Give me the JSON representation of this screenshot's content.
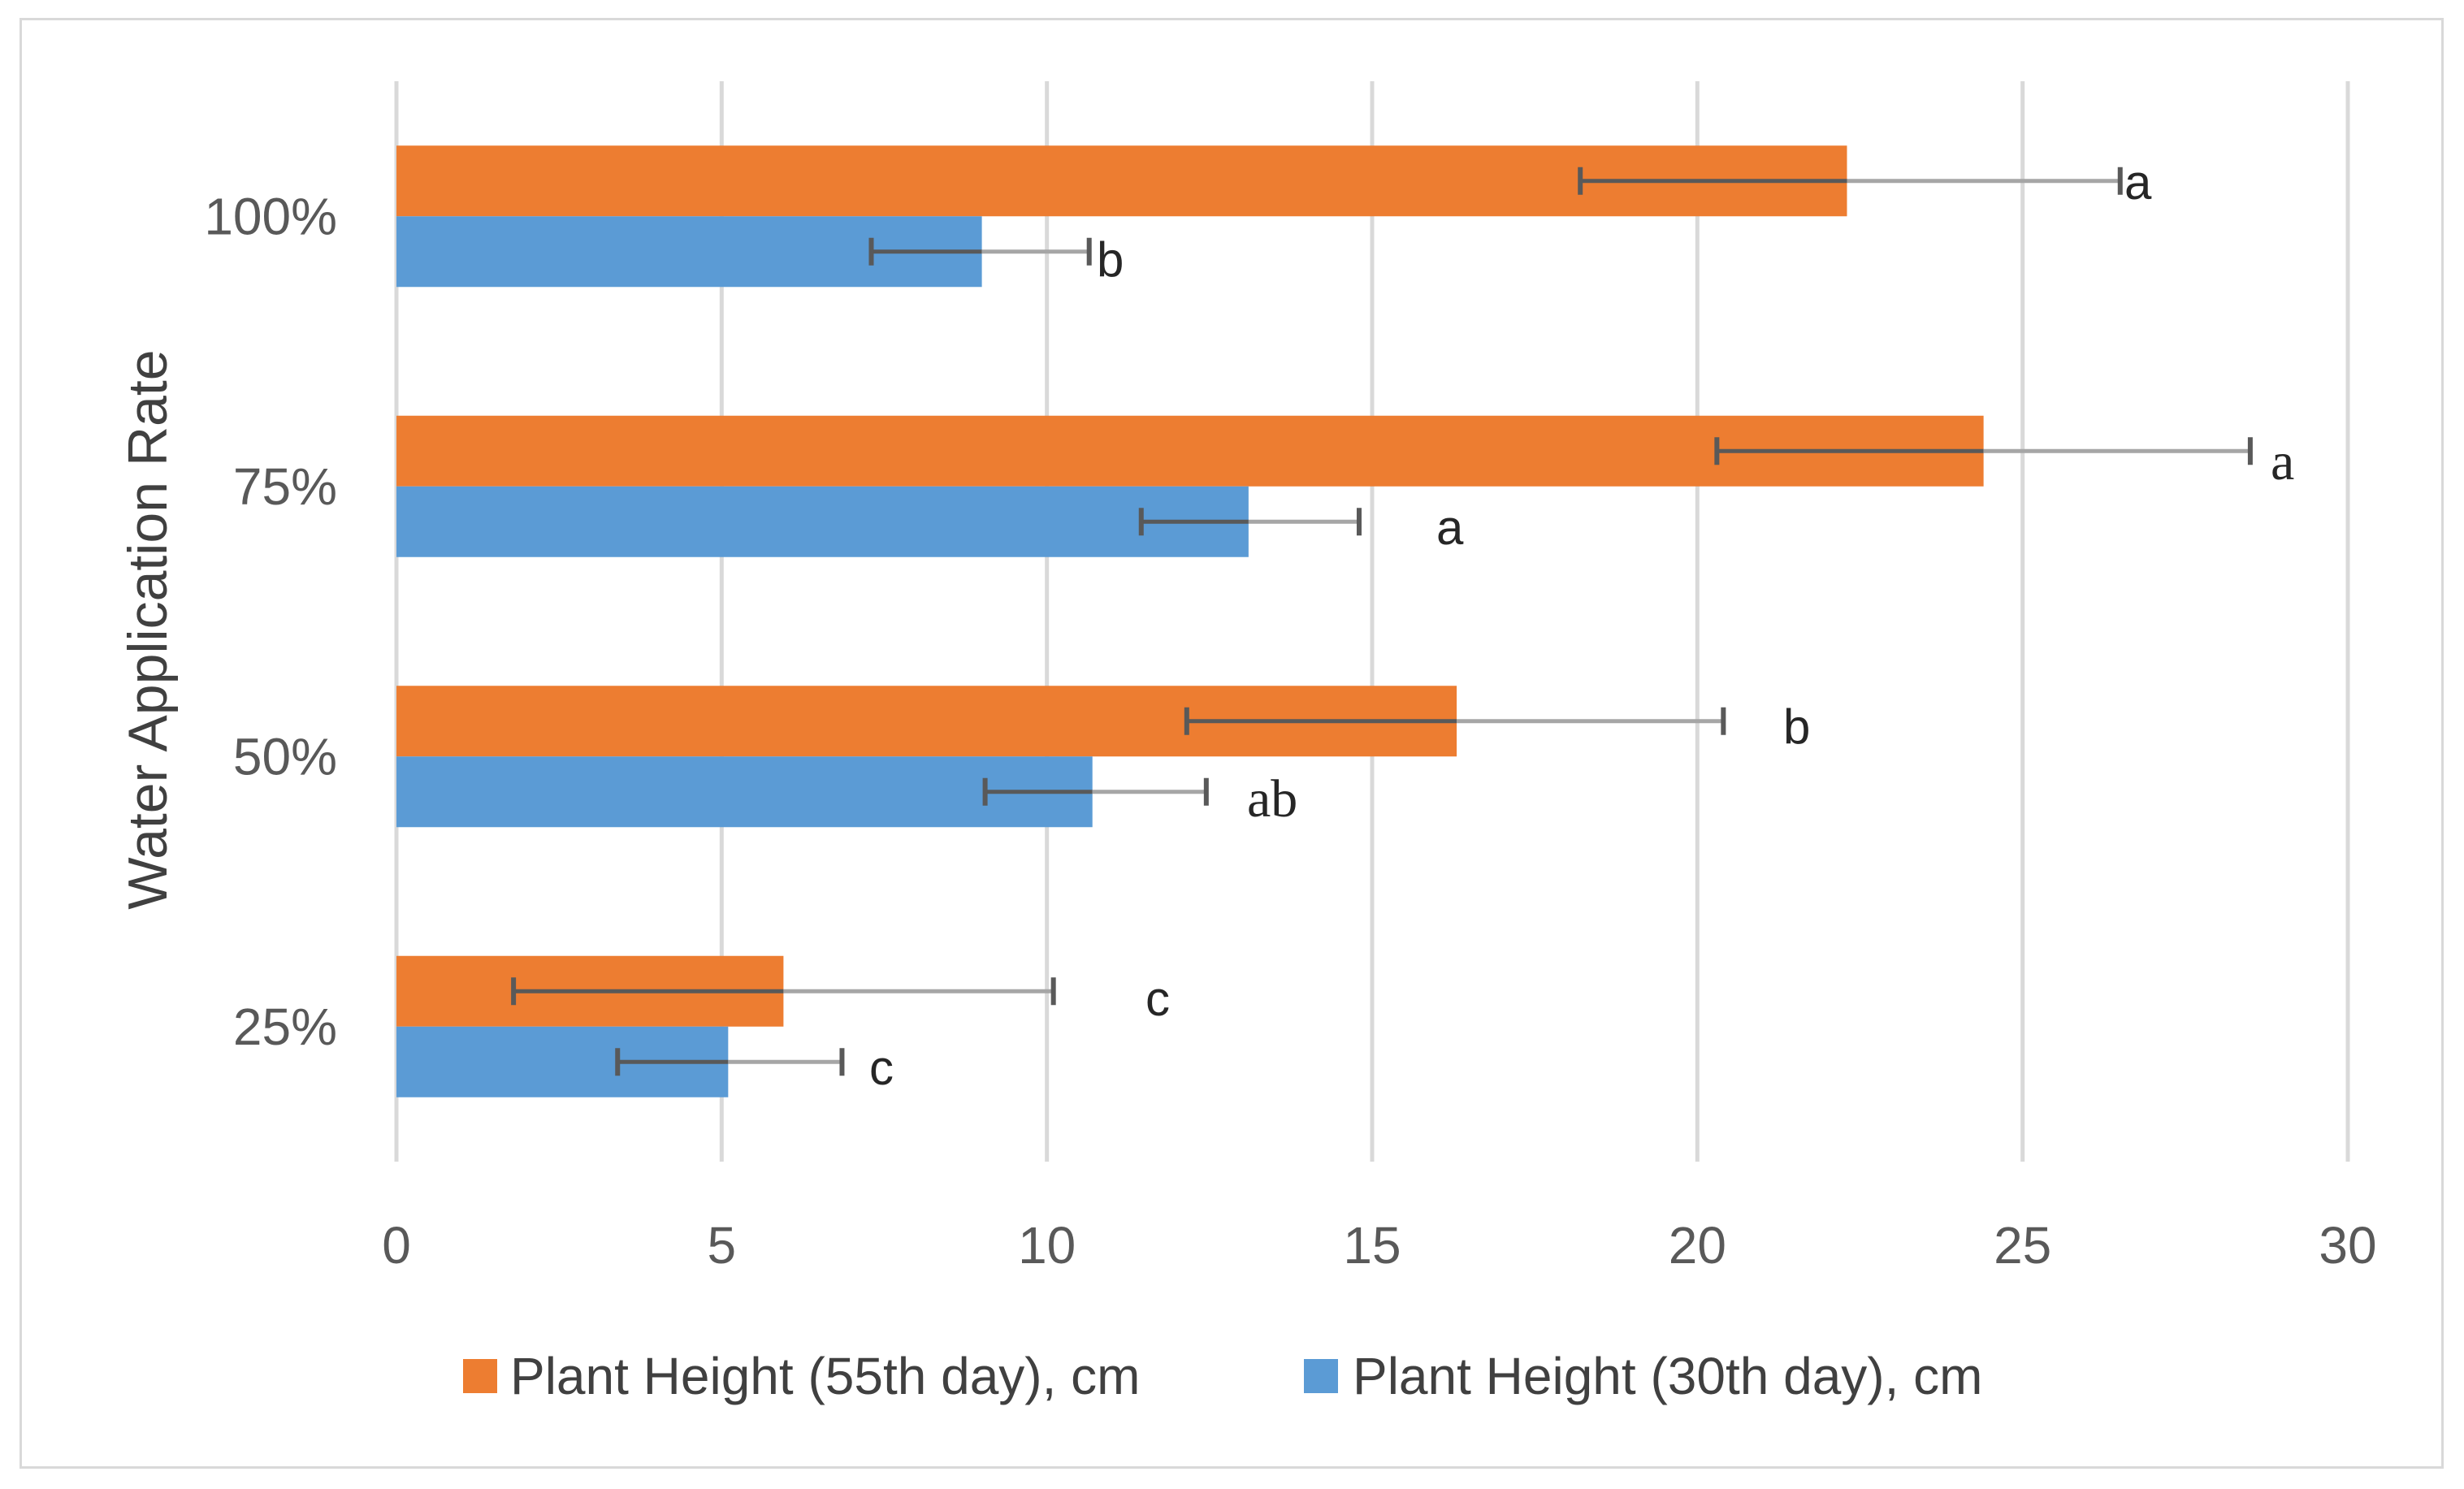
{
  "chart_data": {
    "type": "bar",
    "orientation": "horizontal",
    "title": "",
    "xlabel": "",
    "ylabel": "Water Application Rate",
    "xlim": [
      0,
      30
    ],
    "xticks": [
      "0",
      "5",
      "10",
      "15",
      "20",
      "25",
      "30"
    ],
    "grid": true,
    "legend_position": "bottom",
    "categories": [
      "100%",
      "75%",
      "50%",
      "25%"
    ],
    "series": [
      {
        "name": "Plant Height (55th day), cm",
        "color": "#ED7D31",
        "values": [
          22.3,
          24.4,
          16.3,
          5.95
        ],
        "error_low": [
          18.2,
          20.3,
          12.15,
          1.8
        ],
        "error_high": [
          26.5,
          28.5,
          20.4,
          10.1
        ],
        "letters": [
          "a",
          "a",
          "b",
          "c"
        ]
      },
      {
        "name": "Plant Height (30th day), cm",
        "color": "#5B9BD5",
        "values": [
          9.0,
          13.1,
          10.7,
          5.1
        ],
        "error_low": [
          7.3,
          11.45,
          9.05,
          3.4
        ],
        "error_high": [
          10.65,
          14.8,
          12.45,
          6.85
        ],
        "letters": [
          "b",
          "a",
          "ab",
          "c"
        ]
      }
    ]
  }
}
